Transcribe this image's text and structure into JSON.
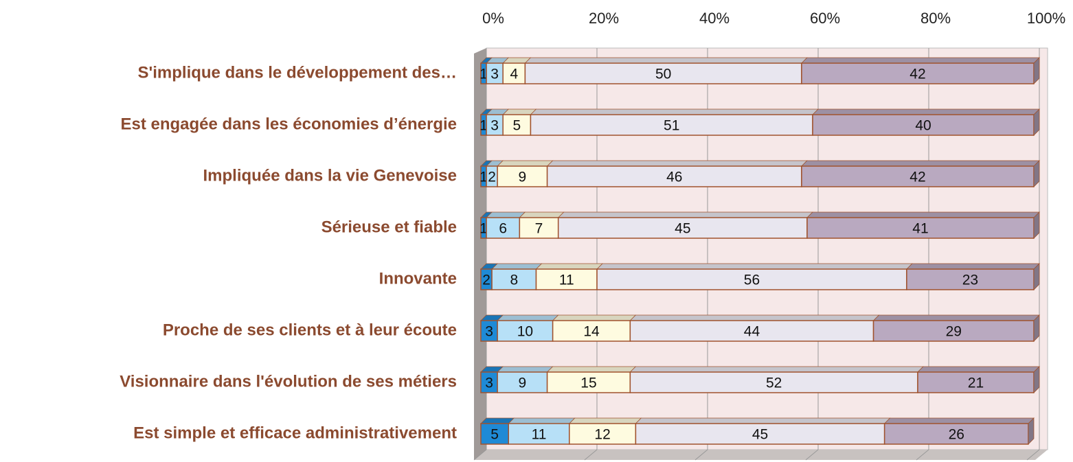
{
  "chart_data": {
    "type": "bar",
    "orientation": "horizontal",
    "stacked": true,
    "three_d": true,
    "categories": [
      "S'implique dans le développement des…",
      "Est engagée dans les économies d’énergie",
      "Impliquée dans la vie Genevoise",
      "Sérieuse et fiable",
      "Innovante",
      "Proche de ses clients et à leur écoute",
      "Visionnaire dans l'évolution de ses métiers",
      "Est simple et efficace administrativement"
    ],
    "series": [
      {
        "color": "#1f8ad6",
        "values": [
          1,
          1,
          1,
          1,
          2,
          3,
          3,
          5
        ]
      },
      {
        "color": "#b7e0f7",
        "values": [
          3,
          3,
          2,
          6,
          8,
          10,
          9,
          11
        ]
      },
      {
        "color": "#fefbe0",
        "values": [
          4,
          5,
          9,
          7,
          11,
          14,
          15,
          12
        ]
      },
      {
        "color": "#e8e6ef",
        "values": [
          50,
          51,
          46,
          45,
          56,
          44,
          52,
          45
        ]
      },
      {
        "color": "#b9a9c0",
        "values": [
          42,
          40,
          42,
          41,
          23,
          29,
          21,
          26
        ]
      }
    ],
    "xlim": [
      0,
      100
    ],
    "xticks": [
      {
        "value": 0,
        "label": "0%"
      },
      {
        "value": 20,
        "label": "20%"
      },
      {
        "value": 40,
        "label": "40%"
      },
      {
        "value": 60,
        "label": "60%"
      },
      {
        "value": 80,
        "label": "80%"
      },
      {
        "value": 100,
        "label": "100%"
      }
    ],
    "grid": true
  }
}
